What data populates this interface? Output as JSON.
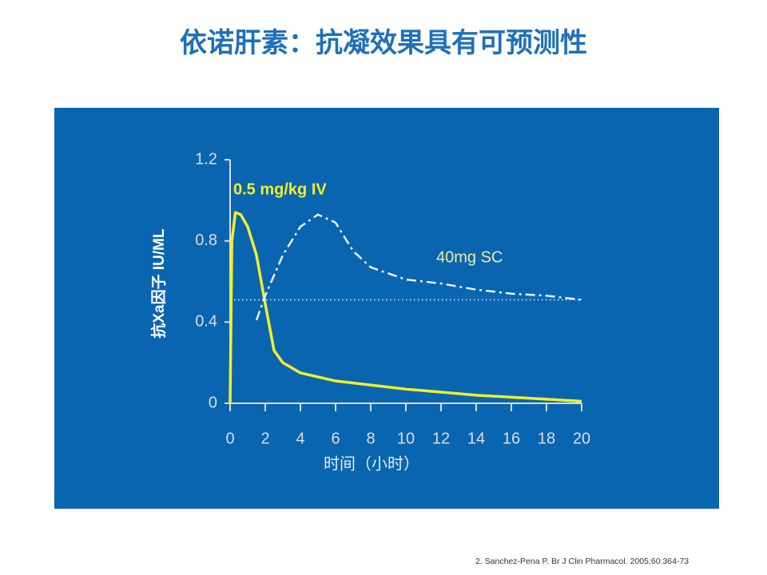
{
  "chart_data": {
    "type": "line",
    "title": "依诺肝素：抗凝效果具有可预测性",
    "xlabel": "时间（小时）",
    "ylabel": "抗Xa因子  IU/ML",
    "xlim": [
      0,
      20
    ],
    "xticks": [
      0,
      2,
      4,
      6,
      8,
      10,
      12,
      14,
      16,
      18,
      20
    ],
    "ylim": [
      0,
      1.2
    ],
    "yticks": [
      0,
      0.4,
      0.8,
      1.2
    ],
    "reference_line": 0.51,
    "series": [
      {
        "name": "0.5 mg/kg IV",
        "color": "#f2ee2a",
        "style": "solid",
        "x": [
          0,
          0.1,
          0.3,
          0.6,
          1,
          1.5,
          2,
          2.5,
          3,
          4,
          5,
          6,
          8,
          10,
          12,
          14,
          16,
          18,
          20
        ],
        "values": [
          0,
          0.8,
          0.94,
          0.93,
          0.87,
          0.73,
          0.49,
          0.26,
          0.2,
          0.15,
          0.13,
          0.11,
          0.09,
          0.07,
          0.055,
          0.04,
          0.03,
          0.02,
          0.01
        ]
      },
      {
        "name": "40mg SC",
        "color": "#e8eef5",
        "style": "dashdot",
        "x": [
          1.5,
          2,
          3,
          4,
          5,
          6,
          7,
          8,
          10,
          12,
          14,
          16,
          18,
          20
        ],
        "values": [
          0.41,
          0.53,
          0.73,
          0.87,
          0.93,
          0.89,
          0.75,
          0.67,
          0.61,
          0.59,
          0.56,
          0.54,
          0.53,
          0.51
        ]
      }
    ],
    "source": "2. Sanchez-Pena P. Br J Clin Pharmacol. 2005;60:364-73"
  }
}
